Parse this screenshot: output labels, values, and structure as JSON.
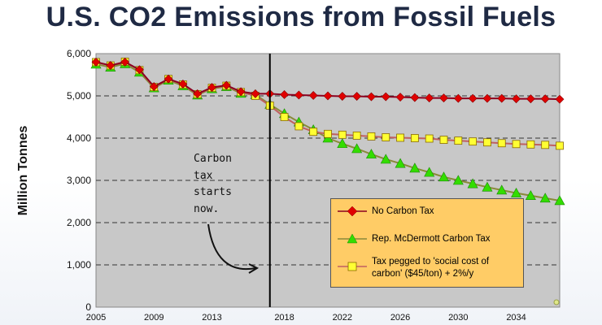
{
  "chart_data": {
    "type": "line",
    "title": "U.S. CO2 Emissions from Fossil Fuels",
    "ylabel": "Million Tonnes",
    "xlabel": "",
    "xlim": [
      2005,
      2037
    ],
    "ylim": [
      0,
      6000
    ],
    "x_ticks": [
      "2005",
      "2009",
      "2013",
      "2018",
      "2022",
      "2026",
      "2030",
      "2034"
    ],
    "y_ticks": [
      "0",
      "1,000",
      "2,000",
      "3,000",
      "4,000",
      "5,000",
      "6,000"
    ],
    "grid": "horizontal dashed",
    "policy_year": 2017,
    "annotation": [
      "Carbon",
      "tax",
      "starts",
      "now."
    ],
    "legend_position": "lower-right",
    "series": [
      {
        "name": "No Carbon Tax",
        "marker": "diamond",
        "color": "#e00000",
        "line_color": "#8a0020",
        "x": [
          2005,
          2006,
          2007,
          2008,
          2009,
          2010,
          2011,
          2012,
          2013,
          2014,
          2015,
          2016,
          2017,
          2018,
          2019,
          2020,
          2021,
          2022,
          2023,
          2024,
          2025,
          2026,
          2027,
          2028,
          2029,
          2030,
          2031,
          2032,
          2033,
          2034,
          2035,
          2036,
          2037
        ],
        "values": [
          5800,
          5720,
          5800,
          5620,
          5220,
          5400,
          5280,
          5050,
          5200,
          5250,
          5100,
          5050,
          5050,
          5030,
          5020,
          5010,
          5000,
          4990,
          4990,
          4980,
          4980,
          4970,
          4960,
          4950,
          4950,
          4940,
          4940,
          4940,
          4940,
          4930,
          4930,
          4930,
          4920
        ]
      },
      {
        "name": "Rep. McDermott Carbon Tax",
        "marker": "triangle",
        "color": "#33dd00",
        "line_color": "#8a8a3a",
        "x": [
          2005,
          2006,
          2007,
          2008,
          2009,
          2010,
          2011,
          2012,
          2013,
          2014,
          2015,
          2016,
          2017,
          2018,
          2019,
          2020,
          2021,
          2022,
          2023,
          2024,
          2025,
          2026,
          2027,
          2028,
          2029,
          2030,
          2031,
          2032,
          2033,
          2034,
          2035,
          2036,
          2037
        ],
        "values": [
          5750,
          5680,
          5760,
          5560,
          5190,
          5370,
          5240,
          5020,
          5170,
          5220,
          5060,
          5030,
          4800,
          4580,
          4380,
          4200,
          4000,
          3870,
          3750,
          3620,
          3500,
          3400,
          3290,
          3190,
          3080,
          3000,
          2920,
          2840,
          2770,
          2700,
          2640,
          2580,
          2520
        ]
      },
      {
        "name": "Tax pegged to 'social cost of carbon' ($45/ton) + 2%/y",
        "marker": "square",
        "color": "#ffff33",
        "line_color": "#c06060",
        "x": [
          2005,
          2006,
          2007,
          2008,
          2009,
          2010,
          2011,
          2012,
          2013,
          2014,
          2015,
          2016,
          2017,
          2018,
          2019,
          2020,
          2021,
          2022,
          2023,
          2024,
          2025,
          2026,
          2027,
          2028,
          2029,
          2030,
          2031,
          2032,
          2033,
          2034,
          2035,
          2036,
          2037
        ],
        "values": [
          5800,
          5720,
          5810,
          5610,
          5210,
          5400,
          5270,
          5040,
          5190,
          5240,
          5090,
          5000,
          4770,
          4500,
          4280,
          4150,
          4100,
          4080,
          4060,
          4040,
          4020,
          4010,
          4000,
          3990,
          3960,
          3940,
          3920,
          3900,
          3880,
          3860,
          3850,
          3840,
          3820
        ]
      }
    ]
  }
}
